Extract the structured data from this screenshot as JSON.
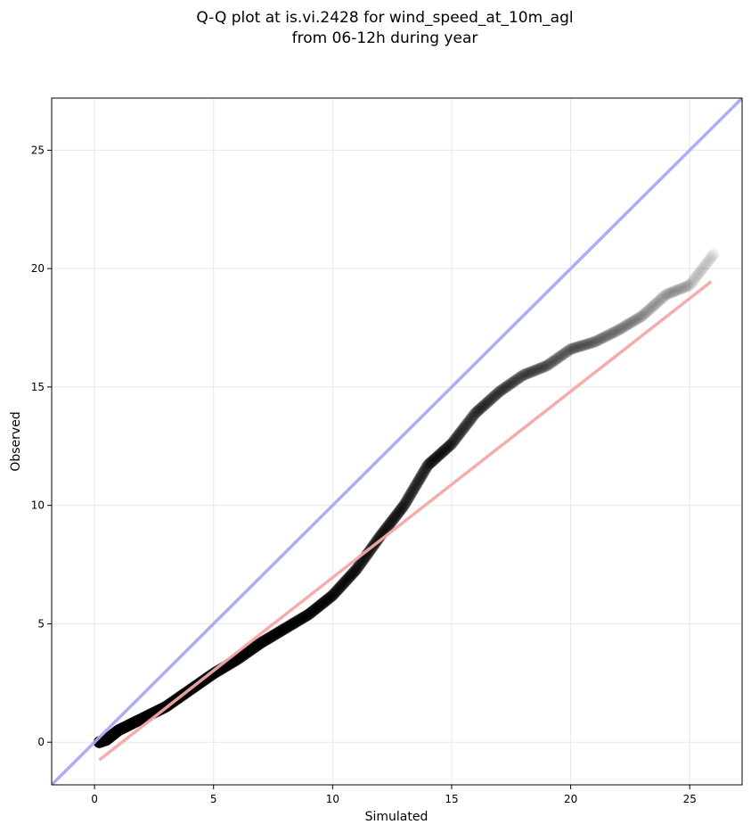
{
  "chart_data": {
    "type": "scatter",
    "title": "Q-Q plot at is.vi.2428 for wind_speed_at_10m_agl",
    "subtitle": "from 06-12h during year",
    "xlabel": "Simulated",
    "ylabel": "Observed",
    "xlim": [
      -1.8,
      27.2
    ],
    "ylim": [
      -1.8,
      27.2
    ],
    "xticks": [
      0,
      5,
      10,
      15,
      20,
      25
    ],
    "yticks": [
      0,
      5,
      10,
      15,
      20,
      25
    ],
    "xtick_labels": [
      "0",
      "5",
      "10",
      "15",
      "20",
      "25"
    ],
    "ytick_labels": [
      "0",
      "5",
      "10",
      "15",
      "20",
      "25"
    ],
    "grid": true,
    "colors": {
      "points": "#000000",
      "identity_line": "#a8aaf5",
      "fit_line": "#f5a8a8",
      "grid": "#e8e8e8"
    },
    "quantile_curve": {
      "x": [
        0.2,
        0.5,
        1,
        2,
        3,
        4,
        5,
        6,
        7,
        8,
        9,
        10,
        11,
        12,
        13,
        14,
        15,
        16,
        17,
        18,
        19,
        20,
        21,
        22,
        23,
        24,
        25,
        26
      ],
      "y": [
        0,
        0.1,
        0.5,
        1.0,
        1.5,
        2.2,
        2.9,
        3.5,
        4.2,
        4.8,
        5.4,
        6.2,
        7.3,
        8.7,
        10.0,
        11.7,
        12.6,
        13.9,
        14.8,
        15.5,
        15.9,
        16.6,
        16.9,
        17.4,
        18.0,
        18.9,
        19.3,
        20.6
      ]
    },
    "reference_lines": [
      {
        "role": "identity",
        "x": [
          -1.8,
          27.2
        ],
        "y": [
          -1.8,
          27.2
        ]
      },
      {
        "role": "fit",
        "x": [
          0.2,
          25.9
        ],
        "y": [
          -0.75,
          19.45
        ]
      }
    ]
  }
}
